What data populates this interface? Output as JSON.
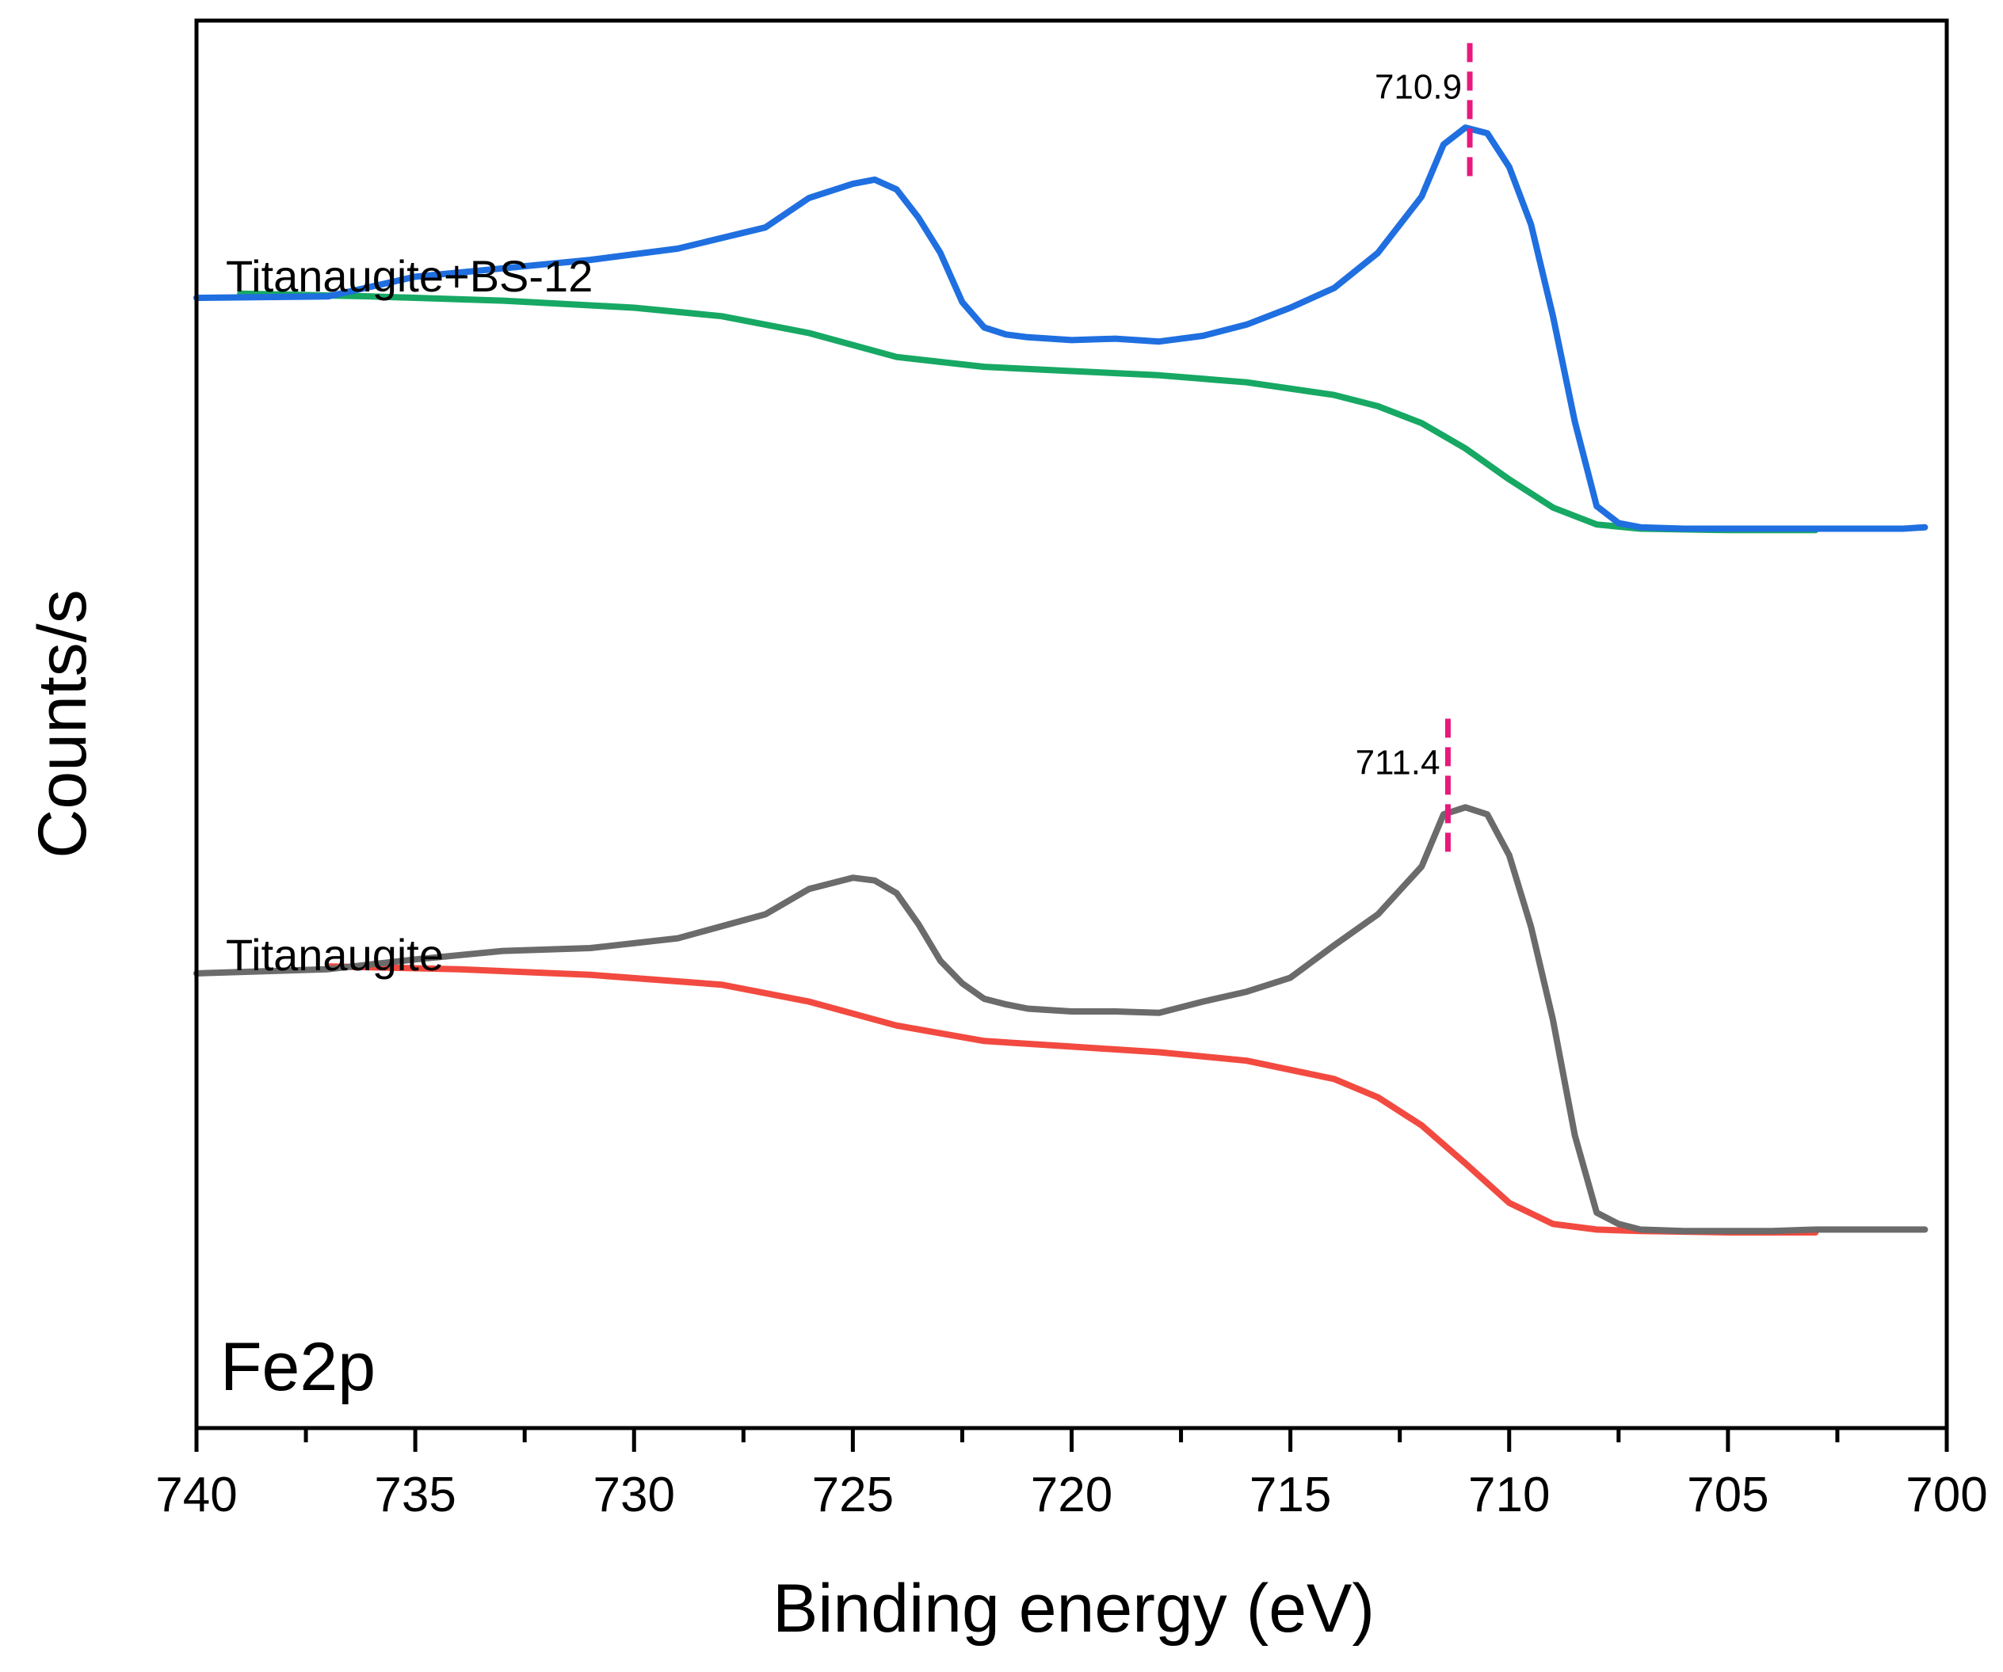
{
  "chart_data": {
    "type": "line",
    "title": "",
    "xlabel": "Binding energy (eV)",
    "ylabel": "Counts/s",
    "xlim": [
      740,
      700
    ],
    "ylim": [
      0,
      100
    ],
    "x_reversed": true,
    "x_ticks": [
      740,
      735,
      730,
      725,
      720,
      715,
      710,
      705,
      700
    ],
    "x_tick_labels": [
      "740",
      "735",
      "730",
      "725",
      "720",
      "715",
      "710",
      "705",
      "700"
    ],
    "y_ticks_shown": false,
    "panel_label": "Fe2p",
    "series": [
      {
        "name": "Titanaugite+BS-12",
        "role": "spectrum",
        "color": "#1f6fe0",
        "x": [
          740,
          737,
          735,
          733,
          731,
          729,
          727,
          726,
          725,
          724.5,
          724,
          723.5,
          723,
          722.5,
          722,
          721.5,
          721,
          720,
          719,
          718,
          717,
          716,
          715,
          714,
          713,
          712,
          711.5,
          711,
          710.5,
          710,
          709.5,
          709,
          708.5,
          708,
          707.5,
          707,
          706,
          705,
          704,
          703,
          702,
          701,
          700.5
        ],
        "y": [
          80.3,
          80.4,
          81.8,
          82.4,
          83.0,
          83.8,
          85.3,
          87.4,
          88.4,
          88.7,
          88.0,
          86.0,
          83.5,
          80.0,
          78.2,
          77.7,
          77.5,
          77.3,
          77.4,
          77.2,
          77.6,
          78.4,
          79.6,
          81.0,
          83.5,
          87.5,
          91.2,
          92.4,
          92.0,
          89.6,
          85.5,
          79.0,
          71.5,
          65.5,
          64.3,
          64.0,
          63.9,
          63.9,
          63.9,
          63.9,
          63.9,
          63.9,
          64.0
        ]
      },
      {
        "name": "Titanaugite+BS-12 background",
        "role": "background",
        "color": "#17a864",
        "x": [
          739,
          736,
          733,
          730,
          728,
          726,
          724,
          722,
          720,
          718,
          716,
          714,
          713,
          712,
          711,
          710,
          709,
          708,
          707,
          705,
          703
        ],
        "y": [
          80.6,
          80.4,
          80.1,
          79.6,
          79.0,
          77.8,
          76.1,
          75.4,
          75.1,
          74.8,
          74.3,
          73.4,
          72.6,
          71.4,
          69.6,
          67.4,
          65.4,
          64.2,
          63.9,
          63.8,
          63.8
        ]
      },
      {
        "name": "Titanaugite",
        "role": "spectrum",
        "color": "#6b6b6b",
        "x": [
          740,
          737,
          735,
          733,
          731,
          729,
          727,
          726,
          725,
          724.5,
          724,
          723.5,
          723,
          722.5,
          722,
          721.5,
          721,
          720,
          719,
          718,
          717,
          716,
          715,
          714,
          713,
          712,
          711.5,
          711,
          710.5,
          710,
          709.5,
          709,
          708.5,
          708,
          707.5,
          707,
          706,
          705,
          704,
          703,
          702,
          701,
          700.5
        ],
        "y": [
          32.3,
          32.6,
          33.3,
          33.9,
          34.1,
          34.8,
          36.5,
          38.3,
          39.1,
          38.9,
          38.0,
          35.8,
          33.2,
          31.6,
          30.5,
          30.1,
          29.8,
          29.6,
          29.6,
          29.5,
          30.3,
          31.0,
          32.0,
          34.3,
          36.5,
          39.9,
          43.6,
          44.1,
          43.6,
          40.7,
          35.6,
          29.0,
          20.8,
          15.3,
          14.5,
          14.1,
          14.0,
          14.0,
          14.0,
          14.1,
          14.1,
          14.1,
          14.1
        ]
      },
      {
        "name": "Titanaugite background",
        "role": "background",
        "color": "#f24a40",
        "x": [
          737,
          734,
          731,
          728,
          726,
          724,
          722,
          720,
          718,
          716,
          714,
          713,
          712,
          711,
          710,
          709,
          708,
          707,
          705,
          703
        ],
        "y": [
          32.8,
          32.6,
          32.2,
          31.5,
          30.3,
          28.6,
          27.5,
          27.1,
          26.7,
          26.1,
          24.8,
          23.5,
          21.5,
          18.8,
          16.0,
          14.5,
          14.1,
          14.0,
          13.9,
          13.9
        ]
      }
    ],
    "curve_labels": [
      {
        "series": "Titanaugite+BS-12",
        "text": "Titanaugite+BS-12",
        "x": 739.3,
        "y": 86.4
      },
      {
        "series": "Titanaugite",
        "text": "Titanaugite",
        "x": 739.3,
        "y": 39.9
      }
    ],
    "annotations": [
      {
        "type": "vline",
        "x": 710.9,
        "y_from": 88.7,
        "y_to": 98.4,
        "color": "#e8197d",
        "dashed": true,
        "label": "710.9"
      },
      {
        "type": "vline",
        "x": 711.4,
        "y_from": 40.8,
        "y_to": 50.4,
        "color": "#e8197d",
        "dashed": true,
        "label": "711.4"
      }
    ]
  }
}
